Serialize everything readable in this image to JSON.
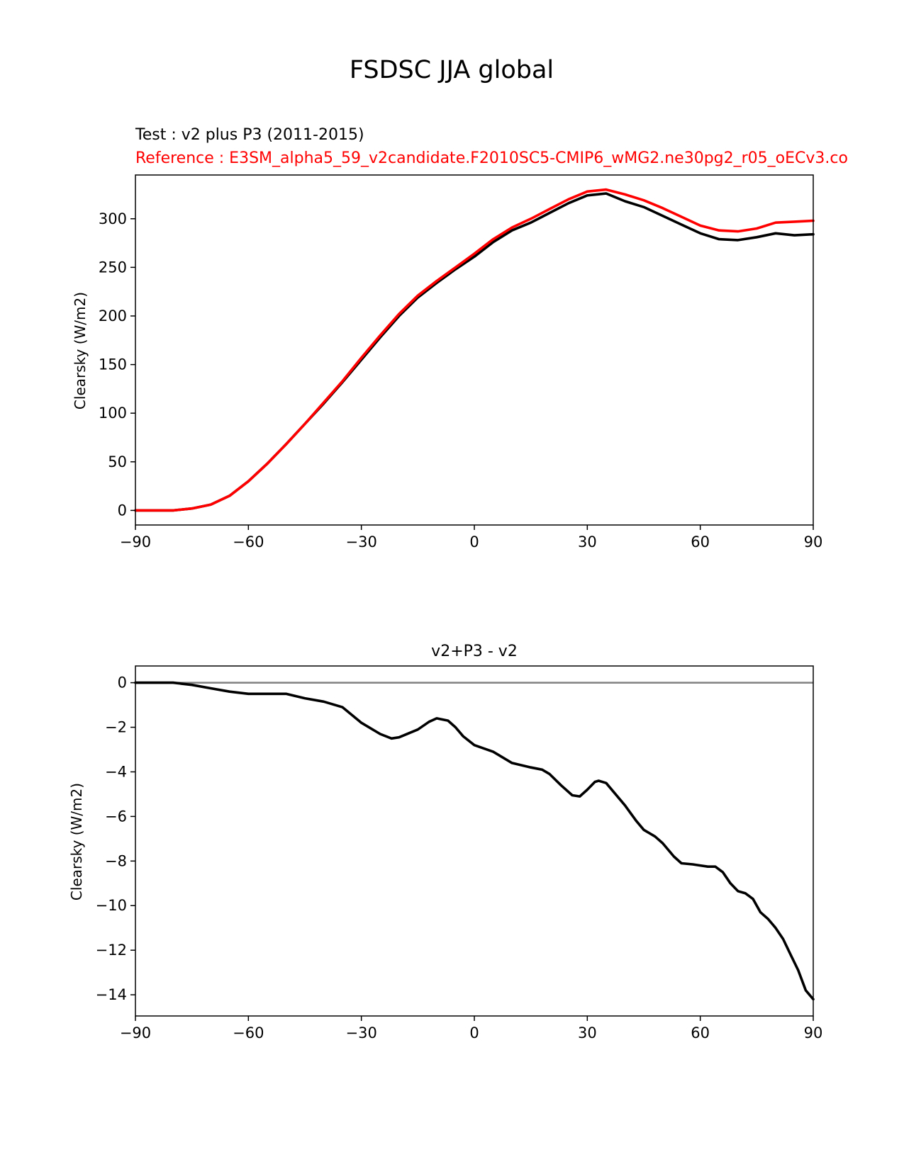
{
  "figure": {
    "title": "FSDSC JJA global"
  },
  "chart_data": [
    {
      "type": "line",
      "title_test": "Test : v2 plus P3 (2011-2015)",
      "title_reference": "Reference : E3SM_alpha5_59_v2candidate.F2010SC5-CMIP6_wMG2.ne30pg2_r05_oECv3.co",
      "xlabel": "",
      "ylabel": "Clearsky (W/m2)",
      "xlim": [
        -90,
        90
      ],
      "ylim": [
        -15,
        345
      ],
      "xticks": [
        -90,
        -60,
        -30,
        0,
        30,
        60,
        90
      ],
      "xtick_labels": [
        "−90",
        "−60",
        "−30",
        "0",
        "30",
        "60",
        "90"
      ],
      "yticks": [
        0,
        50,
        100,
        150,
        200,
        250,
        300
      ],
      "ytick_labels": [
        "0",
        "50",
        "100",
        "150",
        "200",
        "250",
        "300"
      ],
      "series": [
        {
          "name": "Test",
          "color": "#000000",
          "x": [
            -90,
            -80,
            -75,
            -70,
            -65,
            -60,
            -55,
            -50,
            -45,
            -40,
            -35,
            -30,
            -25,
            -20,
            -15,
            -10,
            -5,
            0,
            5,
            10,
            15,
            20,
            25,
            30,
            35,
            40,
            45,
            50,
            55,
            60,
            65,
            70,
            75,
            80,
            85,
            90
          ],
          "y": [
            0,
            0,
            2,
            6,
            15,
            30,
            48,
            68,
            89,
            110,
            132,
            155,
            178,
            200,
            219,
            234,
            248,
            261,
            276,
            288,
            296,
            306,
            316,
            324,
            326,
            318,
            312,
            303,
            294,
            285,
            279,
            278,
            281,
            285,
            283,
            284
          ]
        },
        {
          "name": "Reference",
          "color": "#ff0000",
          "x": [
            -90,
            -80,
            -75,
            -70,
            -65,
            -60,
            -55,
            -50,
            -45,
            -40,
            -35,
            -30,
            -25,
            -20,
            -15,
            -10,
            -5,
            0,
            5,
            10,
            15,
            20,
            25,
            30,
            35,
            40,
            45,
            50,
            55,
            60,
            65,
            70,
            75,
            80,
            85,
            90
          ],
          "y": [
            0,
            0,
            2,
            6,
            15,
            30,
            48,
            68,
            89,
            111,
            133,
            157,
            180,
            202,
            221,
            236,
            250,
            264,
            279,
            291,
            300,
            310,
            320,
            328,
            330,
            325,
            319,
            311,
            302,
            293,
            288,
            287,
            290,
            296,
            297,
            298
          ]
        }
      ]
    },
    {
      "type": "line",
      "title": "v2+P3 - v2",
      "xlabel": "",
      "ylabel": "Clearsky (W/m2)",
      "xlim": [
        -90,
        90
      ],
      "ylim": [
        -14.95,
        0.75
      ],
      "xticks": [
        -90,
        -60,
        -30,
        0,
        30,
        60,
        90
      ],
      "xtick_labels": [
        "−90",
        "−60",
        "−30",
        "0",
        "30",
        "60",
        "90"
      ],
      "yticks": [
        0,
        -2,
        -4,
        -6,
        -8,
        -10,
        -12,
        -14
      ],
      "ytick_labels": [
        "0",
        "−2",
        "−4",
        "−6",
        "−8",
        "−10",
        "−12",
        "−14"
      ],
      "zero_line": {
        "y": 0,
        "color": "#808080"
      },
      "series": [
        {
          "name": "difference",
          "color": "#000000",
          "x": [
            -90,
            -80,
            -75,
            -70,
            -65,
            -60,
            -55,
            -50,
            -45,
            -40,
            -35,
            -30,
            -25,
            -22,
            -20,
            -15,
            -12,
            -10,
            -7,
            -5,
            -3,
            0,
            5,
            10,
            15,
            18,
            20,
            23,
            26,
            28,
            30,
            32,
            33,
            35,
            37,
            40,
            43,
            45,
            48,
            50,
            53,
            55,
            58,
            60,
            62,
            64,
            66,
            68,
            70,
            72,
            74,
            76,
            78,
            80,
            82,
            84,
            86,
            88,
            90
          ],
          "y": [
            0,
            0,
            -0.1,
            -0.25,
            -0.4,
            -0.5,
            -0.5,
            -0.5,
            -0.7,
            -0.85,
            -1.1,
            -1.8,
            -2.3,
            -2.5,
            -2.45,
            -2.1,
            -1.75,
            -1.6,
            -1.7,
            -2.0,
            -2.4,
            -2.8,
            -3.1,
            -3.6,
            -3.8,
            -3.9,
            -4.1,
            -4.6,
            -5.05,
            -5.1,
            -4.8,
            -4.45,
            -4.4,
            -4.5,
            -4.9,
            -5.5,
            -6.2,
            -6.6,
            -6.9,
            -7.2,
            -7.8,
            -8.1,
            -8.15,
            -8.2,
            -8.25,
            -8.25,
            -8.5,
            -9.0,
            -9.35,
            -9.45,
            -9.7,
            -10.3,
            -10.6,
            -11.0,
            -11.5,
            -12.2,
            -12.9,
            -13.8,
            -14.2
          ]
        }
      ]
    }
  ]
}
